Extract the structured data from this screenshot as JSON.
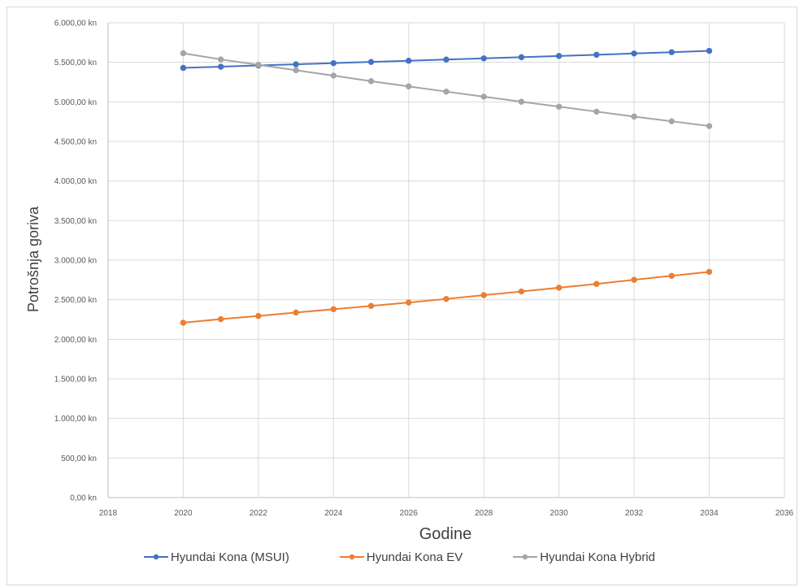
{
  "chart_data": {
    "type": "line",
    "xlabel": "Godine",
    "ylabel": "Potrošnja goriva",
    "xlim": [
      2018,
      2036
    ],
    "x_ticks": [
      "2018",
      "2020",
      "2022",
      "2024",
      "2026",
      "2028",
      "2030",
      "2032",
      "2034",
      "2036"
    ],
    "ylim": [
      0,
      6000
    ],
    "y_ticks": [
      "0,00 kn",
      "500,00 kn",
      "1.000,00 kn",
      "1.500,00 kn",
      "2.000,00 kn",
      "2.500,00 kn",
      "3.000,00 kn",
      "3.500,00 kn",
      "4.000,00 kn",
      "4.500,00 kn",
      "5.000,00 kn",
      "5.500,00 kn",
      "6.000,00 kn"
    ],
    "grid": true,
    "legend_position": "bottom",
    "x": [
      2020,
      2021,
      2022,
      2023,
      2024,
      2025,
      2026,
      2027,
      2028,
      2029,
      2030,
      2031,
      2032,
      2033,
      2034
    ],
    "series": [
      {
        "name": "Hyundai Kona (MSUI)",
        "color": "#4472c4",
        "values": [
          5430,
          5445,
          5460,
          5475,
          5490,
          5505,
          5520,
          5535,
          5550,
          5565,
          5580,
          5596,
          5612,
          5628,
          5645
        ]
      },
      {
        "name": "Hyundai Kona EV",
        "color": "#ed7d31",
        "values": [
          2210,
          2255,
          2295,
          2338,
          2380,
          2422,
          2465,
          2510,
          2558,
          2604,
          2652,
          2700,
          2752,
          2802,
          2852
        ]
      },
      {
        "name": "Hyundai Kona Hybrid",
        "color": "#a5a5a5",
        "values": [
          5615,
          5537,
          5468,
          5400,
          5332,
          5262,
          5196,
          5130,
          5066,
          5002,
          4940,
          4877,
          4815,
          4755,
          4695
        ]
      }
    ]
  }
}
